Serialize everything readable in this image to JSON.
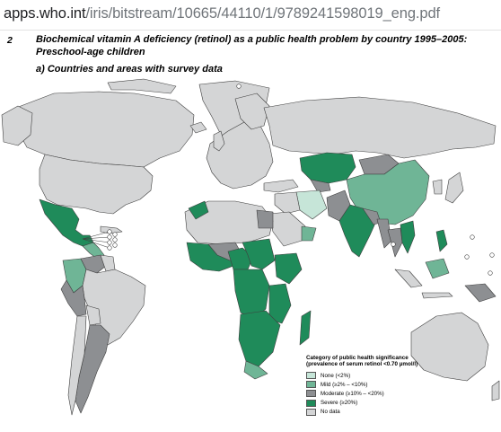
{
  "url": {
    "host": "apps.who.int",
    "path": "/iris/bitstream/10665/44110/1/9789241598019_eng.pdf"
  },
  "figure": {
    "number": "2",
    "title": "Biochemical vitamin A deficiency (retinol) as a public health problem by country 1995–2005: Preschool-age children",
    "subtitle": "a) Countries and areas with survey data"
  },
  "colors": {
    "none": "#c6e5d8",
    "mild": "#6fb596",
    "moderate": "#8d8f92",
    "severe": "#1f8b5a",
    "nodata": "#d4d5d6",
    "border": "#3f3f3f",
    "ocean": "#ffffff"
  },
  "legend": {
    "title": "Category of public health significance (prevalence of serum retinol <0.70 µmol/l)",
    "items": [
      {
        "key": "none",
        "label": "None (<2%)"
      },
      {
        "key": "mild",
        "label": "Mild (≥2% – <10%)"
      },
      {
        "key": "moderate",
        "label": "Moderate (≥10% – <20%)"
      },
      {
        "key": "severe",
        "label": "Severe (≥20%)"
      },
      {
        "key": "nodata",
        "label": "No data"
      }
    ]
  }
}
